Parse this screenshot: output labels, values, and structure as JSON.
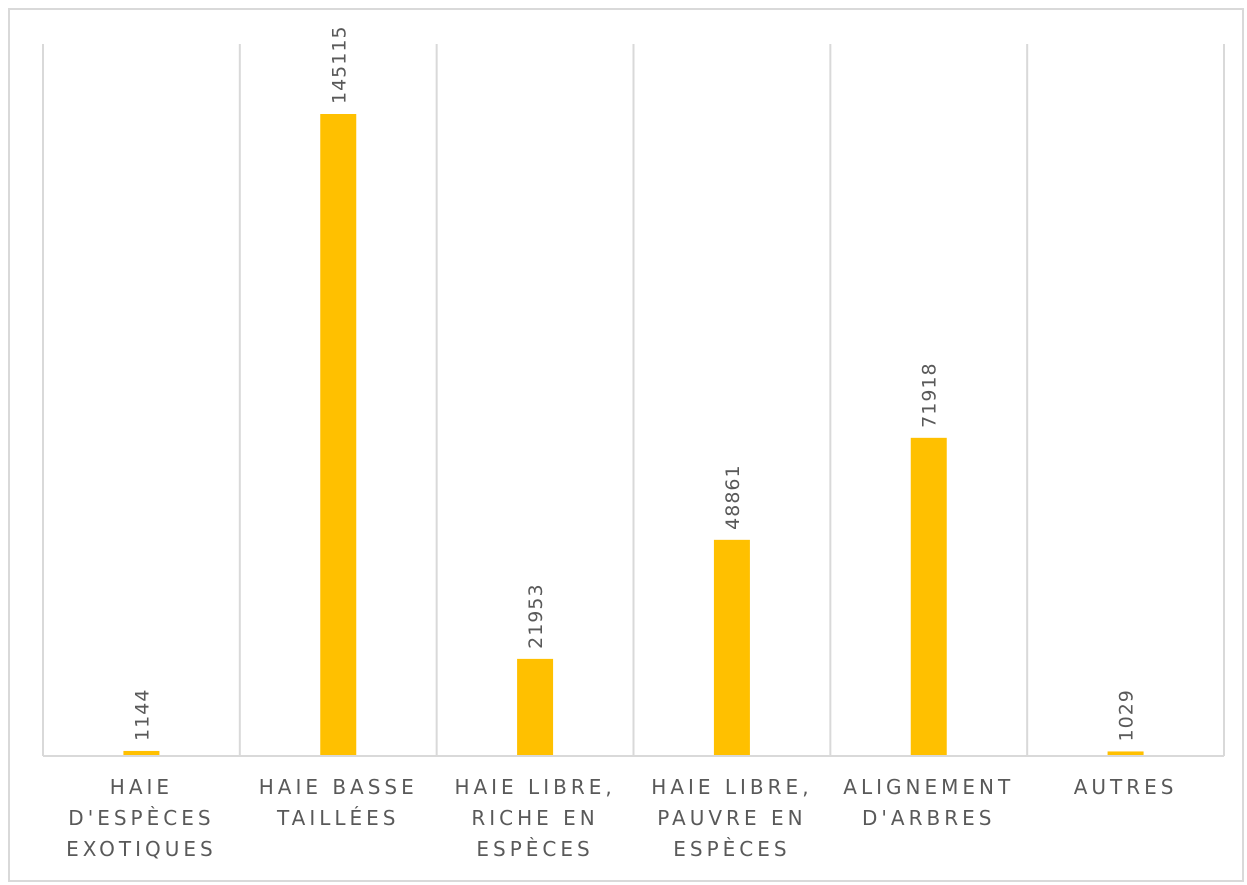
{
  "chart_data": {
    "type": "bar",
    "categories": [
      "HAIE\nD'ESPÈCES\nEXOTIQUES",
      "HAIE BASSE\nTAILLÉES",
      "HAIE LIBRE,\nRICHE EN\nESPÈCES",
      "HAIE LIBRE,\nPAUVRE EN\nESPÈCES",
      "ALIGNEMENT\nD'ARBRES",
      "AUTRES"
    ],
    "values": [
      1144,
      145115,
      21953,
      48861,
      71918,
      1029
    ],
    "value_labels": [
      "1144",
      "145115",
      "21953",
      "48861",
      "71918",
      "1029"
    ],
    "ylim": [
      0,
      145115
    ],
    "grid": "vertical category separators",
    "colors": {
      "bar": "#FFC000",
      "grid": "#d9d9d9",
      "axis": "#d9d9d9",
      "text": "#595959"
    }
  }
}
